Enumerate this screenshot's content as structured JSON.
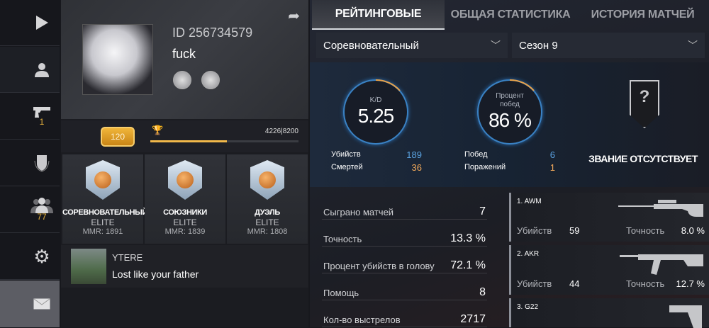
{
  "sidebar": {
    "items": [
      {
        "name": "play",
        "icon": "play-icon"
      },
      {
        "name": "profile",
        "icon": "user-icon"
      },
      {
        "name": "inventory",
        "icon": "pistol-icon",
        "badge": "1"
      },
      {
        "name": "clan",
        "icon": "shield-icon"
      },
      {
        "name": "friends",
        "icon": "friends-icon",
        "badge": "77"
      },
      {
        "name": "settings",
        "icon": "gear-icon"
      },
      {
        "name": "mail",
        "icon": "mail-icon"
      }
    ]
  },
  "profile": {
    "id": "ID 256734579",
    "name": "fuck",
    "level": "120",
    "xp_text": "4226|8200",
    "xp_progress": 0.515
  },
  "ranks": [
    {
      "mode": "СОРЕВНОВАТЕЛЬНЫЙ",
      "tier": "ELITE",
      "mmr": "MMR: 1891"
    },
    {
      "mode": "СОЮЗНИКИ",
      "tier": "ELITE",
      "mmr": "MMR: 1839"
    },
    {
      "mode": "ДУЭЛЬ",
      "tier": "ELITE",
      "mmr": "MMR: 1808"
    }
  ],
  "message": {
    "user": "YTERE",
    "text": "Lost like your father"
  },
  "tabs": [
    {
      "label": "РЕЙТИНГОВЫЕ",
      "active": true
    },
    {
      "label": "ОБЩАЯ СТАТИСТИКА"
    },
    {
      "label": "ИСТОРИЯ МАТЧЕЙ"
    }
  ],
  "filters": {
    "mode": "Соревновательный",
    "season": "Сезон 9"
  },
  "kd": {
    "label": "K/D",
    "value": "5.25",
    "kills_label": "Убийств",
    "kills": "189",
    "deaths_label": "Смертей",
    "deaths": "36"
  },
  "winrate": {
    "label": "Процент побед",
    "value": "86 %",
    "fraction": 0.86,
    "wins_label": "Побед",
    "wins": "6",
    "losses_label": "Поражений",
    "losses": "1"
  },
  "rank_status": "ЗВАНИЕ ОТСУТСТВУЕТ",
  "stats": [
    {
      "label": "Сыграно матчей",
      "value": "7"
    },
    {
      "label": "Точность",
      "value": "13.3 %"
    },
    {
      "label": "Процент убийств в голову",
      "value": "72.1 %"
    },
    {
      "label": "Помощь",
      "value": "8"
    },
    {
      "label": "Кол-во выстрелов",
      "value": "2717"
    }
  ],
  "weapons": [
    {
      "name": "1. AWM",
      "kills_label": "Убийств",
      "kills": "59",
      "acc_label": "Точность",
      "accuracy": "8.0 %"
    },
    {
      "name": "2. AKR",
      "kills_label": "Убийств",
      "kills": "44",
      "acc_label": "Точность",
      "accuracy": "12.7 %"
    },
    {
      "name": "3. G22"
    }
  ],
  "colors": {
    "accent_gold": "#f1b84a",
    "ring_blue": "#3a82c4",
    "kills_blue": "#5aa2e0",
    "deaths_orange": "#f0a85a"
  }
}
